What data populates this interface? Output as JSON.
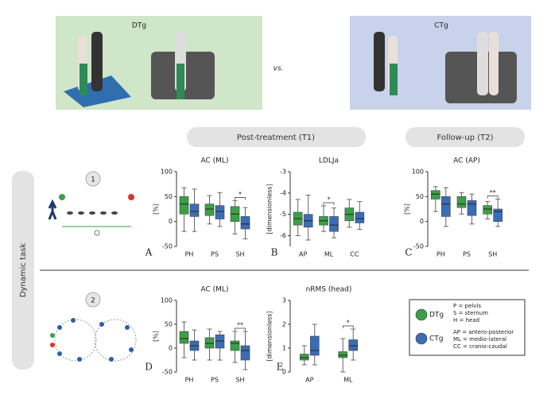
{
  "photos": {
    "left_label": "DTg",
    "right_label": "CTg",
    "separator": "vs."
  },
  "sections": {
    "t1": "Post-treatment (T1)",
    "t2": "Follow-up (T2)",
    "task": "Dynamic task"
  },
  "tasks": [
    "1",
    "2"
  ],
  "legend": {
    "segments": [
      "P = pelvis",
      "S = sternum",
      "H = head"
    ],
    "axes": [
      "AP = antero-posterior",
      "ML = medio-lateral",
      "CC = cranio-caudal"
    ]
  },
  "chart_data": [
    {
      "type": "box",
      "panel": "A",
      "title": "AC (ML)",
      "y_label": "[%]",
      "categories": [
        "PH",
        "PS",
        "SH"
      ],
      "ylim": [
        -50,
        100
      ],
      "yticks": [
        -50,
        0,
        50,
        100
      ],
      "significance": [
        null,
        null,
        "*"
      ],
      "series": [
        {
          "name": "DTg",
          "color": "#3aa047",
          "values": [
            {
              "low": -20,
              "q1": 15,
              "median": 35,
              "q3": 50,
              "high": 68
            },
            {
              "low": -5,
              "q1": 12,
              "median": 25,
              "q3": 35,
              "high": 52
            },
            {
              "low": -25,
              "q1": 0,
              "median": 15,
              "q3": 30,
              "high": 42
            }
          ]
        },
        {
          "name": "CTg",
          "color": "#3a6db5",
          "values": [
            {
              "low": -20,
              "q1": 10,
              "median": 20,
              "q3": 35,
              "high": 65
            },
            {
              "low": -10,
              "q1": 5,
              "median": 20,
              "q3": 32,
              "high": 58
            },
            {
              "low": -35,
              "q1": -15,
              "median": -5,
              "q3": 10,
              "high": 28
            }
          ]
        }
      ]
    },
    {
      "type": "box",
      "panel": "B",
      "title": "LDLJa",
      "y_label": "[dimensionless]",
      "categories": [
        "AP",
        "ML",
        "CC"
      ],
      "ylim": [
        -6.5,
        -3
      ],
      "yticks": [
        -6,
        -5,
        -4,
        -3
      ],
      "significance": [
        null,
        "*",
        null
      ],
      "series": [
        {
          "name": "DTg",
          "color": "#3aa047",
          "values": [
            {
              "low": -6,
              "q1": -5.5,
              "median": -5.2,
              "q3": -4.9,
              "high": -4.3
            },
            {
              "low": -5.8,
              "q1": -5.5,
              "median": -5.3,
              "q3": -5.1,
              "high": -4.6
            },
            {
              "low": -5.6,
              "q1": -5.3,
              "median": -5,
              "q3": -4.7,
              "high": -4.3
            }
          ]
        },
        {
          "name": "CTg",
          "color": "#3a6db5",
          "values": [
            {
              "low": -6.2,
              "q1": -5.6,
              "median": -5.3,
              "q3": -5,
              "high": -4.1
            },
            {
              "low": -6.1,
              "q1": -5.8,
              "median": -5.5,
              "q3": -5.1,
              "high": -4.7
            },
            {
              "low": -5.7,
              "q1": -5.4,
              "median": -5.2,
              "q3": -4.9,
              "high": -4.4
            }
          ]
        }
      ]
    },
    {
      "type": "box",
      "panel": "C",
      "title": "AC (AP)",
      "y_label": "[%]",
      "categories": [
        "PH",
        "PS",
        "SH"
      ],
      "ylim": [
        -50,
        100
      ],
      "yticks": [
        -50,
        0,
        50,
        100
      ],
      "significance": [
        null,
        null,
        "**"
      ],
      "series": [
        {
          "name": "DTg",
          "color": "#3aa047",
          "values": [
            {
              "low": 20,
              "q1": 45,
              "median": 55,
              "q3": 62,
              "high": 70
            },
            {
              "low": 15,
              "q1": 28,
              "median": 35,
              "q3": 50,
              "high": 58
            },
            {
              "low": 5,
              "q1": 15,
              "median": 25,
              "q3": 32,
              "high": 40
            }
          ]
        },
        {
          "name": "CTg",
          "color": "#3a6db5",
          "values": [
            {
              "low": -10,
              "q1": 10,
              "median": 35,
              "q3": 50,
              "high": 68
            },
            {
              "low": -5,
              "q1": 12,
              "median": 35,
              "q3": 42,
              "high": 55
            },
            {
              "low": -10,
              "q1": 0,
              "median": 20,
              "q3": 25,
              "high": 45
            }
          ]
        }
      ]
    },
    {
      "type": "box",
      "panel": "D",
      "title": "AC (ML)",
      "y_label": "[%]",
      "categories": [
        "PH",
        "PS",
        "SH"
      ],
      "ylim": [
        -50,
        100
      ],
      "yticks": [
        -50,
        0,
        50,
        100
      ],
      "significance": [
        null,
        null,
        "**"
      ],
      "series": [
        {
          "name": "DTg",
          "color": "#3aa047",
          "values": [
            {
              "low": -20,
              "q1": 10,
              "median": 20,
              "q3": 35,
              "high": 55
            },
            {
              "low": -25,
              "q1": 0,
              "median": 10,
              "q3": 22,
              "high": 40
            },
            {
              "low": -30,
              "q1": -5,
              "median": 10,
              "q3": 15,
              "high": 35
            }
          ]
        },
        {
          "name": "CTg",
          "color": "#3a6db5",
          "values": [
            {
              "low": -25,
              "q1": -5,
              "median": 5,
              "q3": 15,
              "high": 38
            },
            {
              "low": -25,
              "q1": 0,
              "median": 15,
              "q3": 28,
              "high": 35
            },
            {
              "low": -45,
              "q1": -25,
              "median": -5,
              "q3": 5,
              "high": 35
            }
          ]
        }
      ]
    },
    {
      "type": "box",
      "panel": "E",
      "title": "nRMS (head)",
      "y_label": "[dimensionless]",
      "categories": [
        "AP",
        "ML"
      ],
      "ylim": [
        0,
        3
      ],
      "yticks": [
        0,
        1,
        2,
        3
      ],
      "significance": [
        null,
        "*"
      ],
      "series": [
        {
          "name": "DTg",
          "color": "#3aa047",
          "values": [
            {
              "low": 0.3,
              "q1": 0.5,
              "median": 0.6,
              "q3": 0.75,
              "high": 1.1
            },
            {
              "low": 0,
              "q1": 0.6,
              "median": 0.7,
              "q3": 0.85,
              "high": 1.4
            }
          ]
        },
        {
          "name": "CTg",
          "color": "#3a6db5",
          "values": [
            {
              "low": 0.3,
              "q1": 0.7,
              "median": 0.9,
              "q3": 1.5,
              "high": 2
            },
            {
              "low": 0.5,
              "q1": 0.9,
              "median": 1.1,
              "q3": 1.35,
              "high": 1.8
            }
          ]
        }
      ]
    }
  ]
}
